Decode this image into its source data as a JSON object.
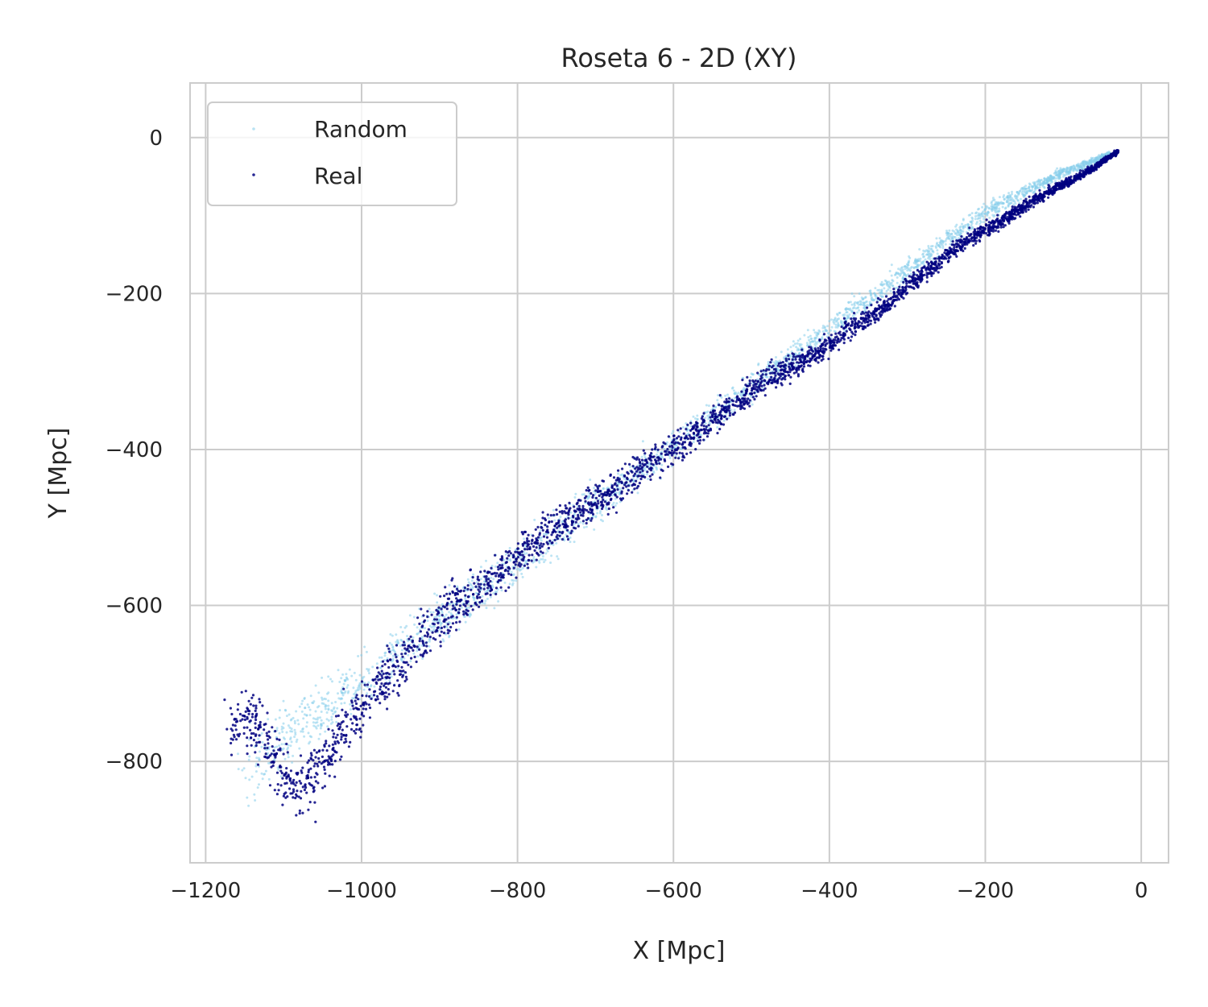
{
  "chart_data": {
    "type": "scatter",
    "title": "Roseta 6 - 2D (XY)",
    "xlabel": "X [Mpc]",
    "ylabel": "Y [Mpc]",
    "xlim": [
      -1220,
      35
    ],
    "ylim": [
      -930,
      70
    ],
    "xticks": [
      -1200,
      -1000,
      -800,
      -600,
      -400,
      -200,
      0
    ],
    "xtick_labels": [
      "−1200",
      "−1000",
      "−800",
      "−600",
      "−400",
      "−200",
      "0"
    ],
    "yticks": [
      0,
      -200,
      -400,
      -600,
      -800
    ],
    "ytick_labels": [
      "0",
      "−200",
      "−400",
      "−600",
      "−800"
    ],
    "grid": true,
    "legend_position": "top-left",
    "series": [
      {
        "name": "Random",
        "color": "#87ceeb",
        "points": [
          [
            -1150,
            -810
          ],
          [
            -1120,
            -790
          ],
          [
            -1100,
            -770
          ],
          [
            -1080,
            -755
          ],
          [
            -1060,
            -740
          ],
          [
            -1040,
            -725
          ],
          [
            -1020,
            -710
          ],
          [
            -1000,
            -695
          ],
          [
            -980,
            -680
          ],
          [
            -960,
            -665
          ],
          [
            -940,
            -650
          ],
          [
            -920,
            -635
          ],
          [
            -900,
            -620
          ],
          [
            -880,
            -605
          ],
          [
            -860,
            -590
          ],
          [
            -840,
            -575
          ],
          [
            -820,
            -560
          ],
          [
            -800,
            -545
          ],
          [
            -780,
            -530
          ],
          [
            -760,
            -515
          ],
          [
            -740,
            -500
          ],
          [
            -720,
            -485
          ],
          [
            -700,
            -470
          ],
          [
            -680,
            -455
          ],
          [
            -660,
            -440
          ],
          [
            -640,
            -425
          ],
          [
            -620,
            -410
          ],
          [
            -600,
            -395
          ],
          [
            -580,
            -380
          ],
          [
            -560,
            -365
          ],
          [
            -540,
            -350
          ],
          [
            -520,
            -335
          ],
          [
            -500,
            -320
          ],
          [
            -480,
            -305
          ],
          [
            -460,
            -290
          ],
          [
            -440,
            -275
          ],
          [
            -420,
            -260
          ],
          [
            -400,
            -245
          ],
          [
            -380,
            -230
          ],
          [
            -360,
            -215
          ],
          [
            -340,
            -200
          ],
          [
            -320,
            -185
          ],
          [
            -300,
            -170
          ],
          [
            -280,
            -155
          ],
          [
            -260,
            -140
          ],
          [
            -240,
            -125
          ],
          [
            -220,
            -110
          ],
          [
            -200,
            -95
          ],
          [
            -180,
            -85
          ],
          [
            -160,
            -75
          ],
          [
            -140,
            -65
          ],
          [
            -120,
            -55
          ],
          [
            -100,
            -45
          ],
          [
            -80,
            -38
          ],
          [
            -60,
            -30
          ],
          [
            -40,
            -22
          ]
        ],
        "spread": [
          [
            -1160,
            75
          ],
          [
            -1000,
            60
          ],
          [
            -800,
            48
          ],
          [
            -600,
            36
          ],
          [
            -400,
            26
          ],
          [
            -200,
            18
          ],
          [
            -30,
            6
          ]
        ]
      },
      {
        "name": "Real",
        "color": "#000080",
        "points": [
          [
            -1165,
            -765
          ],
          [
            -1140,
            -740
          ],
          [
            -1110,
            -800
          ],
          [
            -1090,
            -835
          ],
          [
            -1060,
            -820
          ],
          [
            -1040,
            -790
          ],
          [
            -1020,
            -760
          ],
          [
            -1000,
            -730
          ],
          [
            -980,
            -700
          ],
          [
            -960,
            -690
          ],
          [
            -940,
            -660
          ],
          [
            -920,
            -640
          ],
          [
            -900,
            -620
          ],
          [
            -880,
            -600
          ],
          [
            -860,
            -585
          ],
          [
            -840,
            -570
          ],
          [
            -820,
            -555
          ],
          [
            -800,
            -540
          ],
          [
            -780,
            -520
          ],
          [
            -760,
            -505
          ],
          [
            -740,
            -495
          ],
          [
            -720,
            -480
          ],
          [
            -700,
            -465
          ],
          [
            -680,
            -455
          ],
          [
            -660,
            -440
          ],
          [
            -640,
            -425
          ],
          [
            -620,
            -410
          ],
          [
            -600,
            -400
          ],
          [
            -580,
            -385
          ],
          [
            -560,
            -370
          ],
          [
            -540,
            -355
          ],
          [
            -520,
            -340
          ],
          [
            -500,
            -325
          ],
          [
            -480,
            -310
          ],
          [
            -460,
            -300
          ],
          [
            -440,
            -290
          ],
          [
            -420,
            -280
          ],
          [
            -400,
            -265
          ],
          [
            -380,
            -250
          ],
          [
            -360,
            -235
          ],
          [
            -340,
            -225
          ],
          [
            -320,
            -210
          ],
          [
            -300,
            -190
          ],
          [
            -280,
            -175
          ],
          [
            -260,
            -160
          ],
          [
            -240,
            -145
          ],
          [
            -220,
            -130
          ],
          [
            -200,
            -118
          ],
          [
            -180,
            -108
          ],
          [
            -160,
            -95
          ],
          [
            -140,
            -82
          ],
          [
            -120,
            -70
          ],
          [
            -100,
            -60
          ],
          [
            -80,
            -50
          ],
          [
            -60,
            -38
          ],
          [
            -30,
            -18
          ]
        ],
        "spread": [
          [
            -1160,
            70
          ],
          [
            -1000,
            55
          ],
          [
            -800,
            44
          ],
          [
            -600,
            32
          ],
          [
            -400,
            24
          ],
          [
            -200,
            16
          ],
          [
            -30,
            5
          ]
        ]
      }
    ]
  }
}
